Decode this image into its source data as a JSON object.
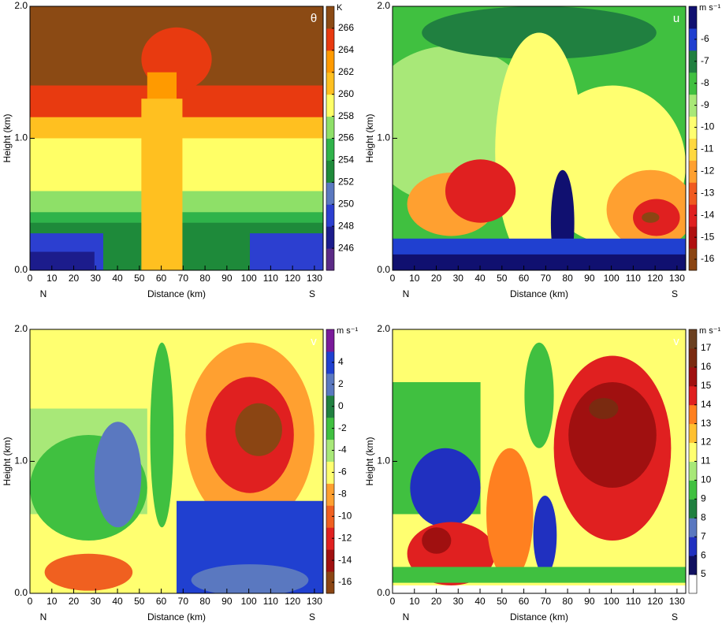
{
  "chart_data": [
    {
      "type": "contour",
      "panel_label": "θ",
      "colorbar_label": "K",
      "xlabel": "Distance (km)",
      "ylabel": "Height (km)",
      "direction_labels": [
        "N",
        "S"
      ],
      "xlim": [
        0,
        134
      ],
      "xticks": [
        0,
        10,
        20,
        30,
        40,
        50,
        60,
        70,
        80,
        90,
        100,
        110,
        120,
        130
      ],
      "ylim": [
        0,
        2
      ],
      "yticks": [
        {
          "value": 0,
          "label": "0.0"
        },
        {
          "value": 1,
          "label": "1.0"
        },
        {
          "value": 2,
          "label": "2.0"
        }
      ],
      "clim": [
        244,
        268
      ],
      "cticks": [
        246,
        248,
        250,
        252,
        254,
        256,
        258,
        260,
        262,
        264,
        266
      ],
      "colors": [
        "#5b2a86",
        "#1c1c8c",
        "#2c3fd0",
        "#5a78c0",
        "#1e8a3a",
        "#2fb34a",
        "#8ee068",
        "#ffff66",
        "#ffc020",
        "#ff9a00",
        "#e83a10",
        "#8b4a14"
      ]
    },
    {
      "type": "contour",
      "panel_label": "u",
      "colorbar_label": "m s⁻¹",
      "xlabel": "Distance (km)",
      "ylabel": "Height (km)",
      "direction_labels": [
        "N",
        "S"
      ],
      "xlim": [
        0,
        134
      ],
      "xticks": [
        0,
        10,
        20,
        30,
        40,
        50,
        60,
        70,
        80,
        90,
        100,
        110,
        120,
        130
      ],
      "ylim": [
        0,
        2
      ],
      "yticks": [
        {
          "value": 0,
          "label": "0.0"
        },
        {
          "value": 1,
          "label": "1.0"
        },
        {
          "value": 2,
          "label": "2.0"
        }
      ],
      "clim": [
        -16.5,
        -4.5
      ],
      "cticks": [
        -16,
        -15,
        -14,
        -13,
        -12,
        -11,
        -10,
        -9,
        -8,
        -7,
        -6
      ],
      "colors": [
        "#8b4513",
        "#b01010",
        "#e02020",
        "#f05a20",
        "#ffa030",
        "#ffd840",
        "#ffff70",
        "#a8e878",
        "#40c040",
        "#208040",
        "#2040d0",
        "#101070"
      ]
    },
    {
      "type": "contour",
      "panel_label": "v",
      "colorbar_label": "m s⁻¹",
      "xlabel": "Distance (km)",
      "ylabel": "Height (km)",
      "direction_labels": [
        "N",
        "S"
      ],
      "xlim": [
        0,
        134
      ],
      "xticks": [
        0,
        10,
        20,
        30,
        40,
        50,
        60,
        70,
        80,
        90,
        100,
        110,
        120,
        130
      ],
      "ylim": [
        0,
        2
      ],
      "yticks": [
        {
          "value": 0,
          "label": "0.0"
        },
        {
          "value": 1,
          "label": "1.0"
        },
        {
          "value": 2,
          "label": "2.0"
        }
      ],
      "clim": [
        -17,
        7
      ],
      "cticks": [
        -16,
        -14,
        -12,
        -10,
        -8,
        -6,
        -4,
        -2,
        0,
        2,
        4
      ],
      "colors": [
        "#8b4513",
        "#a01010",
        "#e02020",
        "#f06020",
        "#ffa030",
        "#ffff70",
        "#a8e878",
        "#40c040",
        "#208040",
        "#5a78c0",
        "#2040d0",
        "#7a1a9a"
      ]
    },
    {
      "type": "contour",
      "panel_label": "v",
      "colorbar_label": "m s⁻¹",
      "xlabel": "Distance (km)",
      "ylabel": "Height (km)",
      "direction_labels": [
        "N",
        "S"
      ],
      "xlim": [
        0,
        134
      ],
      "xticks": [
        0,
        10,
        20,
        30,
        40,
        50,
        60,
        70,
        80,
        90,
        100,
        110,
        120,
        130
      ],
      "ylim": [
        0,
        2
      ],
      "yticks": [
        {
          "value": 0,
          "label": "0.0"
        },
        {
          "value": 1,
          "label": "1.0"
        },
        {
          "value": 2,
          "label": "2.0"
        }
      ],
      "clim": [
        4,
        18
      ],
      "cticks": [
        5,
        6,
        7,
        8,
        9,
        10,
        11,
        12,
        13,
        14,
        15,
        16,
        17
      ],
      "colors": [
        "#ffffff",
        "#101060",
        "#2030c0",
        "#5a78c0",
        "#208040",
        "#40c040",
        "#a8e878",
        "#ffff70",
        "#ffc030",
        "#ff8020",
        "#e02020",
        "#a01010",
        "#7a2a10",
        "#6b4020"
      ]
    }
  ]
}
